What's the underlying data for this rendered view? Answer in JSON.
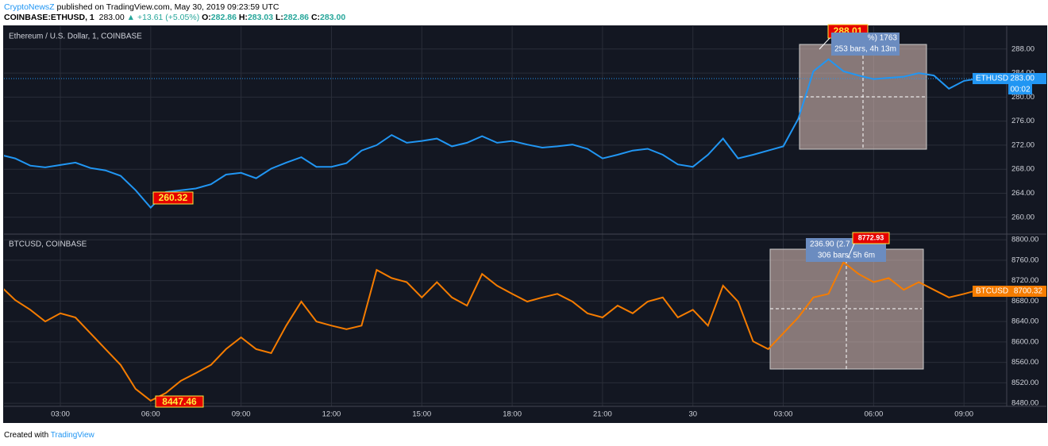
{
  "header": {
    "author": "CryptoNewsZ",
    "published": "published on TradingView.com, May 30, 2019 09:23:59 UTC",
    "symbol": "COINBASE:ETHUSD, 1",
    "last": "283.00",
    "change": "▲ +13.61 (+5.05%)",
    "o_label": "O:",
    "o": "282.86",
    "h_label": "H:",
    "h": "283.03",
    "l_label": "L:",
    "l": "282.86",
    "c_label": "C:",
    "c": "283.00"
  },
  "chart_data": [
    {
      "type": "line",
      "title": "Ethereum / U.S. Dollar, 1, COINBASE",
      "color": "#2196f3",
      "categories": [
        null,
        null,
        null,
        null,
        "03:00",
        null,
        null,
        null,
        null,
        null,
        "06:00",
        null,
        null,
        null,
        null,
        null,
        "09:00",
        null,
        null,
        null,
        null,
        null,
        "12:00",
        null,
        null,
        null,
        null,
        null,
        "15:00",
        null,
        null,
        null,
        null,
        null,
        "18:00",
        null,
        null,
        null,
        null,
        null,
        "21:00",
        null,
        null,
        null,
        null,
        null,
        "30",
        null,
        null,
        null,
        null,
        null,
        "03:00",
        null,
        null,
        null,
        null,
        null,
        "06:00",
        null,
        null,
        null,
        null,
        null,
        "09:00",
        null
      ],
      "values": [
        270.4,
        269.8,
        268.6,
        268.3,
        268.7,
        269.1,
        268.2,
        267.8,
        266.9,
        264.5,
        261.6,
        264.2,
        264.5,
        264.8,
        265.5,
        267.1,
        267.4,
        266.5,
        268.1,
        269.1,
        270.0,
        268.4,
        268.4,
        269.0,
        271.1,
        272.0,
        273.7,
        272.4,
        272.7,
        273.1,
        271.8,
        272.4,
        273.5,
        272.4,
        272.7,
        272.1,
        271.6,
        271.8,
        272.1,
        271.4,
        269.8,
        270.4,
        271.1,
        271.4,
        270.4,
        268.8,
        268.4,
        270.4,
        273.1,
        269.8,
        270.4,
        271.1,
        271.8,
        276.4,
        284.3,
        286.3,
        284.3,
        283.6,
        283.0,
        283.2,
        283.4,
        284.0,
        283.6,
        281.4,
        282.7,
        283.1
      ],
      "ylim": [
        257.2,
        291.8
      ],
      "yticks": [
        {
          "value": 260,
          "label": "260.00"
        },
        {
          "value": 264,
          "label": "264.00"
        },
        {
          "value": 268,
          "label": "268.00"
        },
        {
          "value": 272,
          "label": "272.00"
        },
        {
          "value": 276,
          "label": "276.00"
        },
        {
          "value": 280,
          "label": "280.00"
        },
        {
          "value": 284,
          "label": "284.00"
        },
        {
          "value": 288,
          "label": "288.00"
        }
      ],
      "grid": true
    },
    {
      "type": "line",
      "title": "BTCUSD, COINBASE",
      "color": "#f57c00",
      "categories": [
        null,
        null,
        null,
        null,
        "03:00",
        null,
        null,
        null,
        null,
        null,
        "06:00",
        null,
        null,
        null,
        null,
        null,
        "09:00",
        null,
        null,
        null,
        null,
        null,
        "12:00",
        null,
        null,
        null,
        null,
        null,
        "15:00",
        null,
        null,
        null,
        null,
        null,
        "18:00",
        null,
        null,
        null,
        null,
        null,
        "21:00",
        null,
        null,
        null,
        null,
        null,
        "30",
        null,
        null,
        null,
        null,
        null,
        "03:00",
        null,
        null,
        null,
        null,
        null,
        "06:00",
        null,
        null,
        null,
        null,
        null,
        "09:00",
        null
      ],
      "values": [
        8710,
        8682,
        8663,
        8640,
        8656,
        8648,
        8617,
        8586,
        8555,
        8508,
        8485,
        8500,
        8524,
        8539,
        8555,
        8586,
        8609,
        8586,
        8578,
        8632,
        8679,
        8640,
        8632,
        8625,
        8632,
        8741,
        8725,
        8717,
        8687,
        8717,
        8687,
        8671,
        8733,
        8710,
        8694,
        8679,
        8687,
        8694,
        8679,
        8656,
        8648,
        8671,
        8656,
        8679,
        8687,
        8648,
        8663,
        8632,
        8710,
        8679,
        8601,
        8586,
        8617,
        8648,
        8687,
        8694,
        8756,
        8733,
        8717,
        8725,
        8702,
        8717,
        8702,
        8687,
        8694,
        8702
      ],
      "ylim": [
        8474,
        8811
      ],
      "yticks": [
        {
          "value": 8480,
          "label": "8480.00"
        },
        {
          "value": 8520,
          "label": "8520.00"
        },
        {
          "value": 8560,
          "label": "8560.00"
        },
        {
          "value": 8600,
          "label": "8600.00"
        },
        {
          "value": 8640,
          "label": "8640.00"
        },
        {
          "value": 8680,
          "label": "8680.00"
        },
        {
          "value": 8720,
          "label": "8720.00"
        },
        {
          "value": 8760,
          "label": "8760.00"
        },
        {
          "value": 8800,
          "label": "8800.00"
        }
      ],
      "grid": true
    }
  ],
  "annotations": {
    "eth_high": "288.01",
    "eth_low": "260.32",
    "eth_measure_1": "%) 1763",
    "eth_measure_2": "253 bars, 4h 13m",
    "eth_symbol": "ETHUSD",
    "eth_price": "283.00",
    "eth_countdown": "00:02",
    "btc_high": "8772.93",
    "btc_low": "8447.46",
    "btc_measure_1": "236.90 (2.7",
    "btc_measure_2": "306 bars, 5h 6m",
    "btc_symbol": "BTCUSD",
    "btc_price": "8700.32"
  },
  "footer": {
    "created": "Created with",
    "brand": "TradingView"
  }
}
